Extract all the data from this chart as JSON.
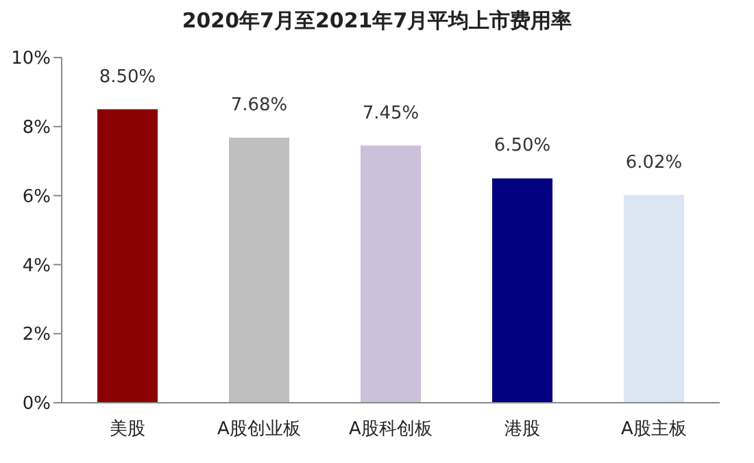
{
  "chart_data": {
    "type": "bar",
    "title": "2020年7月至2021年7月平均上市费用率",
    "categories": [
      "美股",
      "A股创业板",
      "A股科创板",
      "港股",
      "A股主板"
    ],
    "values": [
      8.5,
      7.68,
      7.45,
      6.5,
      6.02
    ],
    "colors": [
      "#8b0000",
      "#bfbfbf",
      "#ccc0da",
      "#000080",
      "#dce6f2"
    ],
    "value_labels": [
      "8.50%",
      "7.68%",
      "7.45%",
      "6.50%",
      "6.02%"
    ],
    "ylim": [
      0,
      10
    ],
    "yticks": [
      {
        "value": 0,
        "label": "0%"
      },
      {
        "value": 2,
        "label": "2%"
      },
      {
        "value": 4,
        "label": "4%"
      },
      {
        "value": 6,
        "label": "6%"
      },
      {
        "value": 8,
        "label": "8%"
      },
      {
        "value": 10,
        "label": "10%"
      }
    ],
    "grid": false,
    "legend": false
  }
}
